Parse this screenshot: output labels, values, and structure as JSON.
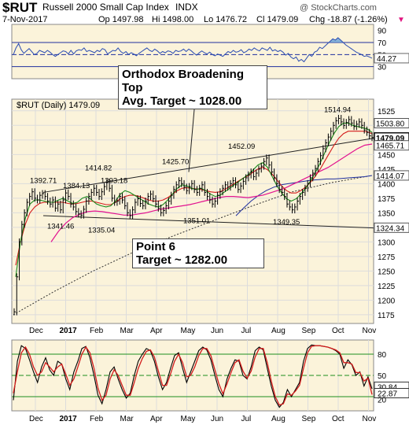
{
  "header": {
    "symbol": "$RUT",
    "name": "Russell 2000 Small Cap Index",
    "exchange": "INDX",
    "date": "7-Nov-2017",
    "op": "Op 1497.98",
    "hi": "Hi 1498.00",
    "lo": "Lo 1476.72",
    "cl": "Cl 1479.09",
    "chg": "Chg -18.87 (-1.26%)",
    "chg_arrow": "▼",
    "watermark": "@ StockCharts.com",
    "main_label": "$RUT (Daily) 1479.09"
  },
  "annotations": {
    "broadening_top": [
      "Orthodox Broadening",
      "Top",
      "Avg. Target ~ 1028.00"
    ],
    "point6": [
      "Point 6",
      "Target ~ 1282.00"
    ]
  },
  "colors": {
    "price_bars": "#000000",
    "ma_short": "#1a8a1a",
    "ma_mid": "#d41c1c",
    "ma_magenta": "#e2138f",
    "ma_long": "#1f2f9e",
    "dotted_line": "#333333",
    "rsi_line": "#2b4db3",
    "rsi_fill_overbought": "#5f9bd6",
    "panel_bg": "#fbf3da",
    "grid": "#dcdcdc",
    "stoch_fast": "#000000",
    "stoch_slow": "#d21b1b",
    "stoch_bands": "#1e8f1e",
    "price_tag_gray": "#555555"
  },
  "chart_data": [
    {
      "type": "line",
      "panel": "rsi",
      "yticks": [
        90,
        70,
        50,
        30
      ],
      "y_labels_shown": [
        "90",
        "70",
        "50",
        "44.27",
        "30"
      ],
      "current_label": "44.27",
      "ylim": [
        10,
        100
      ],
      "guide_lines": [
        70,
        50,
        30
      ],
      "series": [
        {
          "values": [
            50,
            61,
            68,
            58,
            52,
            56,
            60,
            55,
            50,
            52,
            57,
            55,
            53,
            57,
            54,
            50,
            47,
            50,
            53,
            56,
            55,
            51,
            57,
            51,
            56,
            58,
            57,
            61,
            55,
            57,
            55,
            53,
            57,
            55,
            60,
            58,
            51,
            54,
            57,
            56,
            61,
            55,
            52,
            55,
            50,
            53,
            51,
            48,
            52,
            55,
            58,
            61,
            57,
            55,
            59,
            56,
            52,
            55,
            53,
            56,
            55,
            52,
            57,
            55,
            56,
            59,
            55,
            59,
            56,
            52,
            49,
            53,
            56,
            53,
            51,
            54,
            50,
            48,
            51,
            49,
            47,
            51,
            55,
            53,
            57,
            54,
            55,
            58,
            53,
            55,
            59,
            57,
            61,
            58,
            56,
            61,
            59,
            57,
            62,
            56,
            58,
            55,
            57,
            54,
            49,
            52,
            46,
            43,
            46,
            39,
            42,
            38,
            44,
            50,
            47,
            54,
            56,
            62,
            60,
            64,
            68,
            72,
            76,
            74,
            78,
            74,
            70,
            66,
            63,
            60,
            57,
            54,
            52,
            50,
            47,
            48,
            46,
            44
          ]
        }
      ]
    },
    {
      "type": "line",
      "panel": "price",
      "x_ticks": [
        "Dec",
        "2017",
        "Feb",
        "Mar",
        "Apr",
        "May",
        "Jun",
        "Jul",
        "Aug",
        "Sep",
        "Oct",
        "Nov"
      ],
      "yticks": [
        1525,
        1500,
        1475,
        1450,
        1425,
        1400,
        1375,
        1350,
        1325,
        1300,
        1275,
        1250,
        1225,
        1200,
        1175
      ],
      "ylim": [
        1160,
        1545
      ],
      "peak_labels": [
        {
          "text": "1392.71",
          "value": 1392.71
        },
        {
          "text": "1384.13",
          "value": 1384.13
        },
        {
          "text": "1414.82",
          "value": 1414.82
        },
        {
          "text": "1393.18",
          "value": 1393.18
        },
        {
          "text": "1425.70",
          "value": 1425.7
        },
        {
          "text": "1452.09",
          "value": 1452.09
        },
        {
          "text": "1514.94",
          "value": 1514.94
        }
      ],
      "trough_labels": [
        {
          "text": "1341.46",
          "value": 1341.46
        },
        {
          "text": "1335.04",
          "value": 1335.04
        },
        {
          "text": "1351.01",
          "value": 1351.01
        },
        {
          "text": "1349.35",
          "value": 1349.35
        }
      ],
      "right_tags": [
        {
          "text": "1503.80",
          "value": 1503.8,
          "style": "gray"
        },
        {
          "text": "1479.09",
          "value": 1479.09,
          "style": "black"
        },
        {
          "text": "1465.71",
          "value": 1465.71,
          "style": "gray"
        },
        {
          "text": "1414.07",
          "value": 1414.07,
          "style": "gray"
        },
        {
          "text": "1324.34",
          "value": 1324.34,
          "style": "gray"
        }
      ],
      "series": [
        {
          "kind": "close",
          "values": [
            1180,
            1240,
            1300,
            1330,
            1350,
            1368,
            1378,
            1386,
            1375,
            1372,
            1380,
            1383,
            1378,
            1370,
            1365,
            1372,
            1358,
            1365,
            1355,
            1372,
            1384,
            1378,
            1365,
            1360,
            1352,
            1348,
            1346,
            1356,
            1370,
            1378,
            1385,
            1392,
            1385,
            1378,
            1386,
            1395,
            1402,
            1392,
            1375,
            1368,
            1370,
            1378,
            1372,
            1362,
            1350,
            1345,
            1355,
            1368,
            1374,
            1366,
            1362,
            1370,
            1378,
            1382,
            1374,
            1365,
            1358,
            1350,
            1354,
            1362,
            1370,
            1380,
            1390,
            1398,
            1405,
            1400,
            1394,
            1388,
            1395,
            1400,
            1390,
            1385,
            1392,
            1398,
            1385,
            1378,
            1372,
            1365,
            1370,
            1380,
            1386,
            1392,
            1398,
            1394,
            1400,
            1405,
            1398,
            1390,
            1396,
            1404,
            1410,
            1415,
            1420,
            1412,
            1418,
            1425,
            1430,
            1438,
            1444,
            1432,
            1420,
            1410,
            1400,
            1390,
            1385,
            1378,
            1365,
            1360,
            1355,
            1360,
            1370,
            1378,
            1385,
            1392,
            1400,
            1410,
            1418,
            1426,
            1438,
            1448,
            1460,
            1470,
            1480,
            1490,
            1500,
            1508,
            1512,
            1506,
            1500,
            1505,
            1510,
            1504,
            1498,
            1502,
            1506,
            1500,
            1492,
            1488,
            1482,
            1479
          ]
        },
        {
          "kind": "ma_short",
          "values": [
            1240,
            1300,
            1340,
            1365,
            1372,
            1372,
            1370,
            1368,
            1368,
            1372,
            1375,
            1370,
            1366,
            1368,
            1375,
            1378,
            1372,
            1365,
            1362,
            1360,
            1362,
            1370,
            1382,
            1388,
            1385,
            1380,
            1375,
            1370,
            1365,
            1362,
            1360,
            1364,
            1372,
            1382,
            1392,
            1398,
            1396,
            1392,
            1390,
            1392,
            1388,
            1382,
            1378,
            1380,
            1386,
            1392,
            1398,
            1404,
            1410,
            1416,
            1424,
            1432,
            1436,
            1428,
            1412,
            1396,
            1384,
            1374,
            1370,
            1374,
            1382,
            1392,
            1404,
            1418,
            1434,
            1452,
            1470,
            1486,
            1498,
            1504,
            1504,
            1500,
            1498,
            1496,
            1494,
            1488
          ]
        },
        {
          "kind": "ma_mid",
          "values": [
            1260,
            1300,
            1330,
            1350,
            1360,
            1366,
            1368,
            1368,
            1368,
            1368,
            1368,
            1366,
            1365,
            1366,
            1368,
            1370,
            1370,
            1368,
            1366,
            1364,
            1364,
            1368,
            1374,
            1378,
            1380,
            1380,
            1378,
            1375,
            1372,
            1370,
            1370,
            1372,
            1376,
            1382,
            1388,
            1392,
            1393,
            1392,
            1391,
            1390,
            1388,
            1386,
            1385,
            1386,
            1390,
            1395,
            1400,
            1405,
            1410,
            1414,
            1420,
            1425,
            1428,
            1424,
            1416,
            1406,
            1396,
            1388,
            1384,
            1384,
            1388,
            1394,
            1402,
            1412,
            1424,
            1438,
            1452,
            1466,
            1478,
            1486,
            1490,
            1490,
            1490,
            1490,
            1489,
            1486
          ]
        },
        {
          "kind": "ma_magenta",
          "values": [
            1300,
            1318,
            1332,
            1342,
            1348,
            1352,
            1353,
            1352,
            1350,
            1348,
            1346,
            1346,
            1348,
            1350,
            1353,
            1356,
            1358,
            1360,
            1362,
            1364,
            1367,
            1370,
            1373,
            1376,
            1378,
            1378,
            1377,
            1376,
            1378,
            1380,
            1384,
            1388,
            1392,
            1398,
            1404,
            1410,
            1416,
            1422,
            1428,
            1436,
            1444,
            1452,
            1460,
            1466,
            1468
          ]
        },
        {
          "kind": "ma_long",
          "values": [
            1345,
            1358,
            1370,
            1380,
            1388,
            1394,
            1398,
            1400,
            1402,
            1404,
            1406,
            1407,
            1408,
            1408,
            1409,
            1410,
            1411,
            1412,
            1414
          ]
        },
        {
          "kind": "dotted",
          "values": [
            1175,
            1214,
            1250,
            1282,
            1310,
            1336,
            1362,
            1386,
            1402,
            1414
          ]
        }
      ]
    },
    {
      "type": "line",
      "panel": "stochastic",
      "x_ticks": [
        "Dec",
        "2017",
        "Feb",
        "Mar",
        "Apr",
        "May",
        "Jun",
        "Jul",
        "Aug",
        "Sep",
        "Oct",
        "Nov"
      ],
      "yticks": [
        80,
        50,
        20
      ],
      "y_labels_shown": [
        "80",
        "50",
        "30.84",
        "22.87",
        "20"
      ],
      "ylim": [
        0,
        100
      ],
      "band_lines": [
        80,
        20
      ],
      "mid_line": 50,
      "series": [
        {
          "kind": "fast",
          "values": [
            15,
            70,
            92,
            88,
            72,
            55,
            40,
            62,
            75,
            58,
            50,
            70,
            66,
            45,
            30,
            55,
            70,
            88,
            91,
            75,
            50,
            22,
            10,
            30,
            55,
            62,
            45,
            30,
            18,
            25,
            50,
            70,
            80,
            88,
            85,
            70,
            48,
            30,
            40,
            60,
            78,
            82,
            60,
            40,
            55,
            70,
            85,
            90,
            86,
            72,
            50,
            30,
            20,
            45,
            60,
            72,
            70,
            50,
            45,
            62,
            85,
            90,
            86,
            60,
            35,
            15,
            5,
            12,
            30,
            20,
            30,
            40,
            70,
            88,
            93,
            92,
            92,
            91,
            90,
            88,
            85,
            80,
            60,
            72,
            65,
            50,
            55,
            35,
            48,
            31
          ]
        },
        {
          "kind": "slow",
          "values": [
            25,
            55,
            82,
            90,
            80,
            62,
            50,
            55,
            68,
            62,
            55,
            62,
            66,
            52,
            36,
            45,
            62,
            80,
            90,
            82,
            60,
            32,
            15,
            22,
            45,
            58,
            50,
            36,
            22,
            22,
            40,
            60,
            74,
            84,
            86,
            76,
            56,
            36,
            36,
            52,
            70,
            80,
            68,
            48,
            50,
            62,
            78,
            88,
            88,
            78,
            58,
            38,
            24,
            38,
            54,
            68,
            72,
            56,
            46,
            56,
            76,
            88,
            88,
            68,
            42,
            20,
            8,
            10,
            24,
            22,
            28,
            36,
            60,
            82,
            91,
            92,
            92,
            91,
            90,
            88,
            86,
            82,
            68,
            68,
            66,
            54,
            54,
            42,
            46,
            23
          ]
        }
      ]
    }
  ]
}
